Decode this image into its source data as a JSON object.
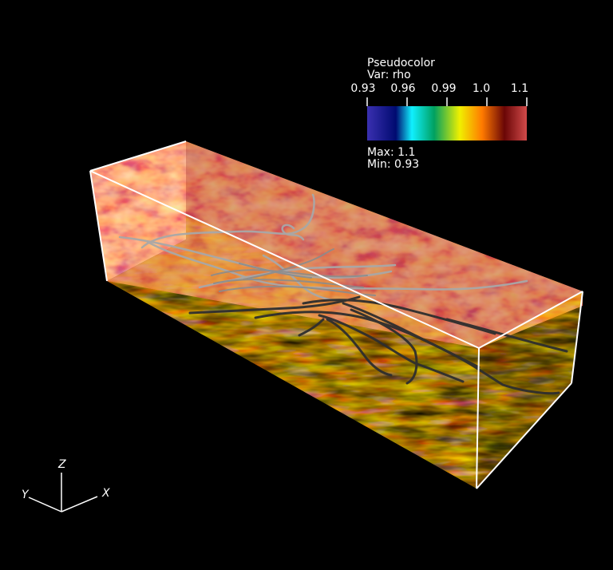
{
  "legend": {
    "plot_type": "Pseudocolor",
    "variable": "Var: rho",
    "ticks": [
      "0.93",
      "0.96",
      "0.99",
      "1.0",
      "1.1"
    ],
    "max_label": "Max:  1.1",
    "min_label": "Min:  0.93",
    "colormap": [
      "#2a1fa8",
      "#001a80",
      "#00e6ff",
      "#00b060",
      "#e8f000",
      "#ff7a00",
      "#7a0a08",
      "#d24a4a"
    ]
  },
  "axes": {
    "z": "Z",
    "y": "Y",
    "x": "X"
  },
  "colors": {
    "background": "#000000",
    "box_edges": "#ffffff",
    "streamlines_light": "#a0a0a0",
    "streamlines_dark": "#303030"
  }
}
